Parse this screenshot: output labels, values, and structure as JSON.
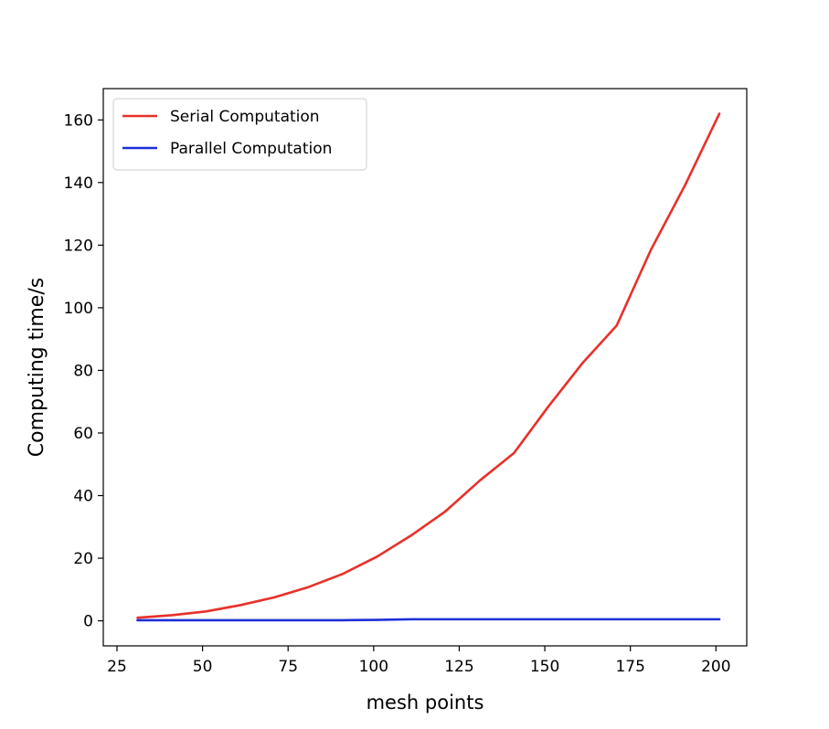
{
  "chart_data": {
    "type": "line",
    "xlabel": "mesh points",
    "ylabel": "Computing time/s",
    "xlim": [
      21,
      209
    ],
    "ylim": [
      -8,
      170
    ],
    "xticks": [
      25,
      50,
      75,
      100,
      125,
      150,
      175,
      200
    ],
    "yticks": [
      0,
      20,
      40,
      60,
      80,
      100,
      120,
      140,
      160
    ],
    "grid": false,
    "legend_position": "top-left",
    "series": [
      {
        "name": "Serial Computation",
        "color": "#e8302a",
        "x": [
          31,
          41,
          51,
          61,
          71,
          81,
          91,
          101,
          111,
          121,
          131,
          141,
          151,
          161,
          171,
          181,
          191,
          201
        ],
        "y": [
          1.0,
          1.8,
          3.0,
          5.0,
          7.5,
          10.8,
          15.0,
          20.5,
          27.3,
          35.0,
          44.8,
          53.6,
          68.4,
          82.3,
          94.3,
          118.5,
          139.2,
          162.0
        ]
      },
      {
        "name": "Parallel Computation",
        "color": "#1c2fd8",
        "x": [
          31,
          41,
          51,
          61,
          71,
          81,
          91,
          101,
          111,
          121,
          131,
          141,
          151,
          161,
          171,
          181,
          191,
          201
        ],
        "y": [
          0.2,
          0.2,
          0.2,
          0.2,
          0.2,
          0.2,
          0.2,
          0.3,
          0.5,
          0.5,
          0.5,
          0.5,
          0.5,
          0.5,
          0.5,
          0.5,
          0.5,
          0.5
        ]
      }
    ]
  }
}
